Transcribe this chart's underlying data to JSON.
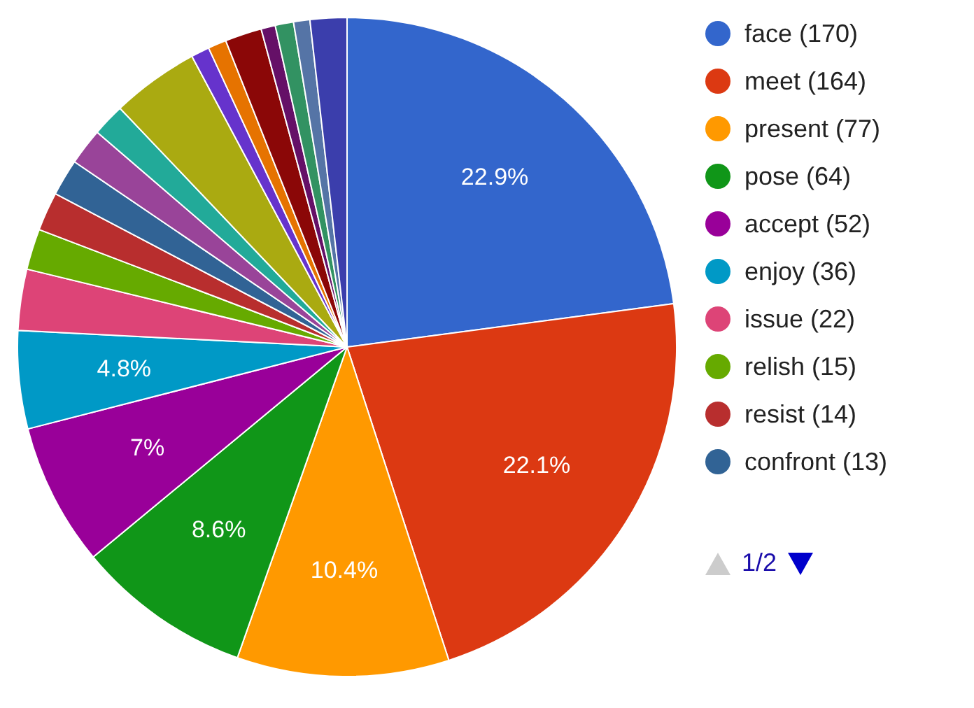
{
  "chart_data": {
    "type": "pie",
    "categories": [
      "face (170)",
      "meet (164)",
      "present (77)",
      "pose (64)",
      "accept (52)",
      "enjoy (36)",
      "issue (22)",
      "relish (15)",
      "resist (14)",
      "confront (13)",
      null,
      null,
      null,
      null,
      null,
      null,
      null,
      null,
      null,
      null
    ],
    "values": [
      22.9,
      22.1,
      10.4,
      8.6,
      7,
      4.8,
      3,
      2,
      1.9,
      1.8,
      1.8,
      1.6,
      4.3,
      0.9,
      0.9,
      1.8,
      0.7,
      0.9,
      0.8,
      1.8
    ],
    "colors": [
      "#3366cc",
      "#dc3912",
      "#ff9900",
      "#109618",
      "#990099",
      "#0099c6",
      "#dd4477",
      "#66aa00",
      "#b82e2e",
      "#316395",
      "#994499",
      "#22aa99",
      "#aaaa11",
      "#6633cc",
      "#e67300",
      "#8b0707",
      "#651067",
      "#329262",
      "#5574a6",
      "#3b3eac"
    ],
    "value_labels": [
      "22.9%",
      "22.1%",
      "10.4%",
      "8.6%",
      "7%",
      "4.8%",
      null,
      null,
      null,
      null,
      null,
      null,
      null,
      null,
      null,
      null,
      null,
      null,
      null,
      null
    ],
    "legend": "right",
    "annotations": [
      "1/2"
    ]
  }
}
